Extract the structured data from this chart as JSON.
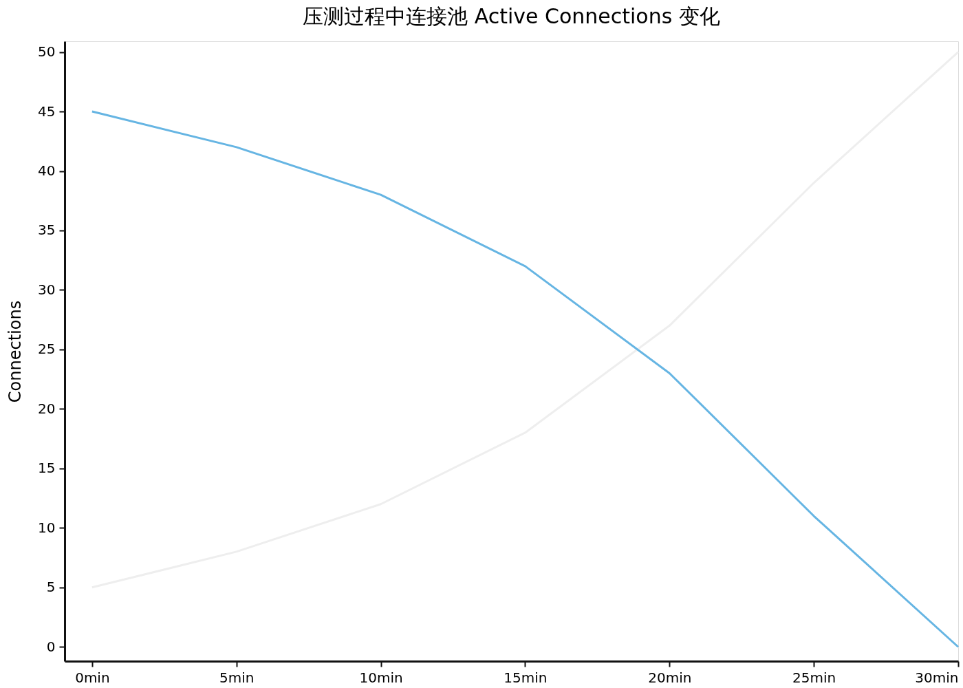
{
  "chart_data": {
    "type": "line",
    "title": "压测过程中连接池 Active Connections 变化",
    "ylabel": "Connections",
    "categories": [
      "0min",
      "5min",
      "10min",
      "15min",
      "20min",
      "25min",
      "30min"
    ],
    "series": [
      {
        "color": "#eeeeee",
        "values": [
          5,
          8,
          12,
          18,
          27,
          39,
          50
        ]
      },
      {
        "color": "#66b5e3",
        "values": [
          45,
          42,
          38,
          32,
          23,
          11,
          0
        ]
      }
    ],
    "ylim": [
      -1.2,
      50.9
    ],
    "yticks": [
      0,
      5,
      10,
      15,
      20,
      25,
      30,
      35,
      40,
      45,
      50
    ],
    "grid": false,
    "legend": false,
    "marker": "none",
    "line_style": "solid"
  }
}
